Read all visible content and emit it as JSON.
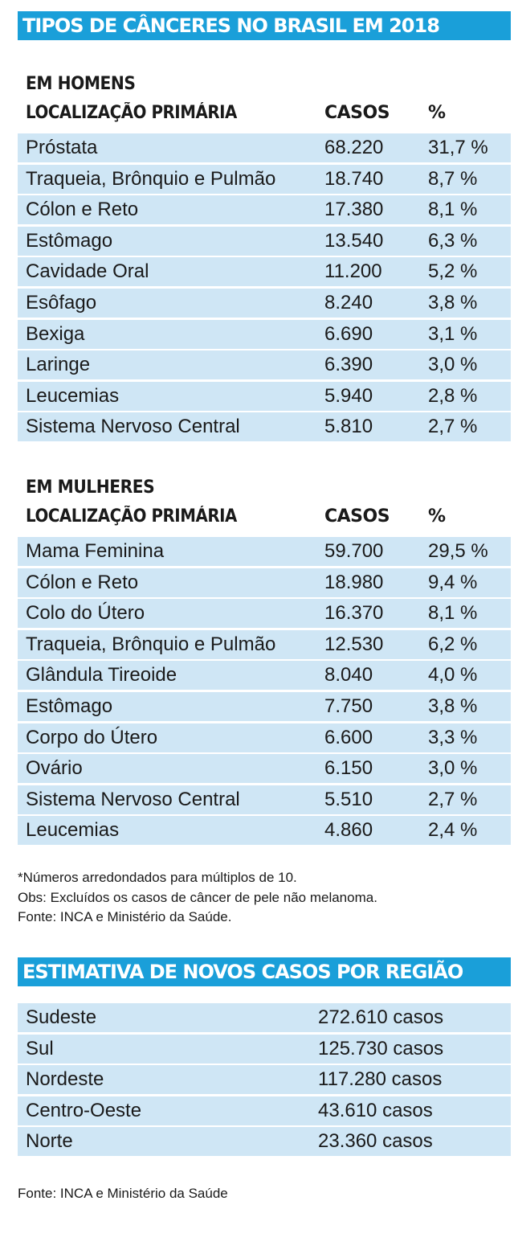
{
  "title": "TIPOS DE CÂNCERES NO BRASIL EM 2018",
  "chart_data": {
    "type": "table",
    "men": {
      "label": "EM HOMENS",
      "columns": [
        "LOCALIZAÇÃO PRIMÁRIA",
        "CASOS",
        "%"
      ],
      "rows": [
        {
          "name": "Próstata",
          "cases": "68.220",
          "pct": "31,7 %"
        },
        {
          "name": "Traqueia, Brônquio e Pulmão",
          "cases": "18.740",
          "pct": "8,7 %"
        },
        {
          "name": "Cólon e Reto",
          "cases": "17.380",
          "pct": "8,1 %"
        },
        {
          "name": "Estômago",
          "cases": "13.540",
          "pct": "6,3 %"
        },
        {
          "name": "Cavidade Oral",
          "cases": "11.200",
          "pct": "5,2 %"
        },
        {
          "name": "Esôfago",
          "cases": "8.240",
          "pct": "3,8 %"
        },
        {
          "name": "Bexiga",
          "cases": "6.690",
          "pct": "3,1 %"
        },
        {
          "name": "Laringe",
          "cases": "6.390",
          "pct": "3,0 %"
        },
        {
          "name": "Leucemias",
          "cases": "5.940",
          "pct": "2,8 %"
        },
        {
          "name": "Sistema Nervoso Central",
          "cases": "5.810",
          "pct": "2,7 %"
        }
      ]
    },
    "women": {
      "label": "EM MULHERES",
      "columns": [
        "LOCALIZAÇÃO PRIMÁRIA",
        "CASOS",
        "%"
      ],
      "rows": [
        {
          "name": "Mama Feminina",
          "cases": "59.700",
          "pct": "29,5 %"
        },
        {
          "name": "Cólon e Reto",
          "cases": "18.980",
          "pct": "9,4 %"
        },
        {
          "name": "Colo do Útero",
          "cases": "16.370",
          "pct": "8,1 %"
        },
        {
          "name": "Traqueia, Brônquio e Pulmão",
          "cases": "12.530",
          "pct": "6,2 %"
        },
        {
          "name": "Glândula Tireoide",
          "cases": "8.040",
          "pct": "4,0 %"
        },
        {
          "name": "Estômago",
          "cases": "7.750",
          "pct": "3,8 %"
        },
        {
          "name": "Corpo do Útero",
          "cases": "6.600",
          "pct": "3,3 %"
        },
        {
          "name": "Ovário",
          "cases": "6.150",
          "pct": "3,0 %"
        },
        {
          "name": "Sistema Nervoso Central",
          "cases": "5.510",
          "pct": "2,7 %"
        },
        {
          "name": "Leucemias",
          "cases": "4.860",
          "pct": "2,4 %"
        }
      ]
    },
    "regions": {
      "title": "ESTIMATIVA DE NOVOS CASOS POR REGIÃO",
      "rows": [
        {
          "name": "Sudeste",
          "value": "272.610 casos"
        },
        {
          "name": "Sul",
          "value": "125.730 casos"
        },
        {
          "name": "Nordeste",
          "value": "117.280 casos"
        },
        {
          "name": "Centro-Oeste",
          "value": "43.610 casos"
        },
        {
          "name": "Norte",
          "value": "23.360 casos"
        }
      ]
    }
  },
  "notes": [
    "*Números arredondados para múltiplos de 10.",
    "Obs: Excluídos os casos de câncer de pele não melanoma.",
    "Fonte: INCA e Ministério da Saúde."
  ],
  "source_bottom": "Fonte: INCA e Ministério da Saúde",
  "colors": {
    "banner": "#1a9fd9",
    "row": "#cfe6f5"
  }
}
